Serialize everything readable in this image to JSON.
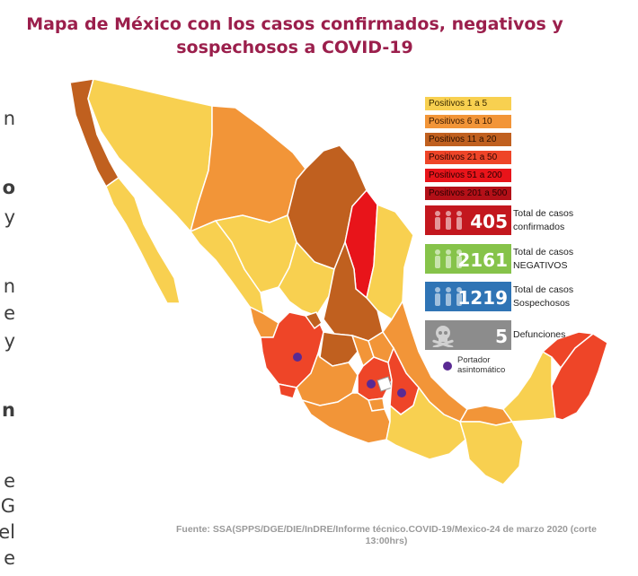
{
  "header": {
    "title_line1": "Mapa de México con los casos confirmados, negativos y",
    "title_line2": "sospechosos a COVID-19"
  },
  "clipped_side_text": [
    "n",
    "o",
    "y",
    "n",
    "e",
    "y",
    "n",
    "e",
    "G",
    "el",
    "e"
  ],
  "legend": {
    "items": [
      {
        "label": "Positivos 1 a 5",
        "color": "#f8d050",
        "text_color": "#3a2a00"
      },
      {
        "label": "Positivos 6 a 10",
        "color": "#f29538",
        "text_color": "#3a1a00"
      },
      {
        "label": "Positivos 11 a 20",
        "color": "#c0601f",
        "text_color": "#2a1000"
      },
      {
        "label": "Positivos 21 a 50",
        "color": "#ee4528",
        "text_color": "#2a0500"
      },
      {
        "label": "Positivos 51 a 200",
        "color": "#e8141a",
        "text_color": "#2a0000"
      },
      {
        "label": "Positivos 201 a 500",
        "color": "#b31018",
        "text_color": "#2a0000"
      }
    ]
  },
  "stats": {
    "confirmed": {
      "value": "405",
      "label_line1": "Total de casos",
      "label_line2": "confirmados",
      "color": "#c3171e",
      "icon": "people-icon"
    },
    "negative": {
      "value": "2161",
      "label_line1": "Total de casos",
      "label_line2": "NEGATIVOS",
      "color": "#86c34a",
      "icon": "people-icon"
    },
    "suspected": {
      "value": "1219",
      "label_line1": "Total de casos",
      "label_line2": "Sospechosos",
      "color": "#2f74b5",
      "icon": "people-icon"
    },
    "deaths": {
      "value": "5",
      "label": "Defunciones",
      "color": "#8c8c8c",
      "icon": "skull-icon"
    }
  },
  "marker_legend": {
    "label_line1": "Portador",
    "label_line2": "asintomático",
    "color": "#5a2a93"
  },
  "source": {
    "line1": "Fuente: SSA(SPPS/DGE/DIE/InDRE/Informe técnico.COVID-19/Mexico-24 de marzo 2020 (corte",
    "line2": "13:00hrs)"
  }
}
